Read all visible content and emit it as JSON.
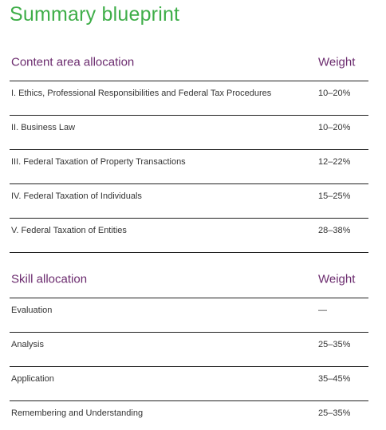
{
  "title": "Summary blueprint",
  "tables": [
    {
      "header": [
        "Content area allocation",
        "Weight"
      ],
      "rows": [
        [
          "I. Ethics, Professional Responsibilities and Federal Tax Procedures",
          "10–20%"
        ],
        [
          "II. Business Law",
          "10–20%"
        ],
        [
          "III. Federal Taxation of Property Transactions",
          "12–22%"
        ],
        [
          "IV. Federal Taxation of Individuals",
          "15–25%"
        ],
        [
          "V. Federal Taxation of Entities",
          "28–38%"
        ]
      ]
    },
    {
      "header": [
        "Skill allocation",
        "Weight"
      ],
      "rows": [
        [
          "Evaluation",
          "—"
        ],
        [
          "Analysis",
          "25–35%"
        ],
        [
          "Application",
          "35–45%"
        ],
        [
          "Remembering and Understanding",
          "25–35%"
        ]
      ]
    }
  ]
}
